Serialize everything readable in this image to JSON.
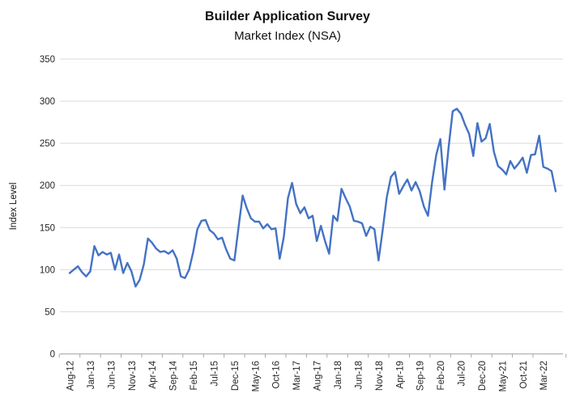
{
  "header": {
    "title": "Builder Application Survey",
    "subtitle": "Market Index (NSA)"
  },
  "chart_data": {
    "type": "line",
    "title": "Builder Application Survey",
    "subtitle": "Market Index (NSA)",
    "xlabel": "",
    "ylabel": "Index Level",
    "ylim": [
      0,
      350
    ],
    "ytick_step": 50,
    "grid": true,
    "legend": false,
    "line_color": "#4472C4",
    "grid_color": "#D9D9D9",
    "axis_color": "#A6A6A6",
    "tick_label_color": "#262626",
    "frequency": "monthly",
    "x_start": "Aug-12",
    "x_end": "Jun-22",
    "x_tick_every": 5,
    "x_tick_labels": [
      "Aug-12",
      "Jan-13",
      "Jun-13",
      "Nov-13",
      "Apr-14",
      "Sep-14",
      "Feb-15",
      "Jul-15",
      "Dec-15",
      "May-16",
      "Oct-16",
      "Mar-17",
      "Aug-17",
      "Jan-18",
      "Jun-18",
      "Nov-18",
      "Apr-19",
      "Sep-19",
      "Feb-20",
      "Jul-20",
      "Dec-20",
      "May-21",
      "Oct-21",
      "Mar-22"
    ],
    "values": [
      96,
      100,
      104,
      97,
      92,
      98,
      128,
      117,
      121,
      118,
      120,
      100,
      118,
      96,
      108,
      98,
      80,
      88,
      106,
      137,
      132,
      125,
      121,
      122,
      119,
      123,
      113,
      92,
      90,
      100,
      121,
      148,
      158,
      159,
      147,
      143,
      136,
      138,
      124,
      113,
      111,
      150,
      188,
      173,
      161,
      157,
      157,
      149,
      154,
      148,
      149,
      113,
      139,
      185,
      203,
      178,
      167,
      174,
      161,
      164,
      134,
      152,
      134,
      119,
      164,
      158,
      196,
      185,
      175,
      158,
      157,
      155,
      140,
      151,
      148,
      111,
      147,
      186,
      210,
      216,
      190,
      199,
      207,
      194,
      204,
      193,
      175,
      164,
      204,
      236,
      255,
      195,
      245,
      288,
      291,
      285,
      272,
      261,
      235,
      274,
      252,
      256,
      273,
      240,
      223,
      219,
      213,
      229,
      220,
      226,
      233,
      215,
      236,
      237,
      259,
      222,
      220,
      217,
      193
    ]
  }
}
